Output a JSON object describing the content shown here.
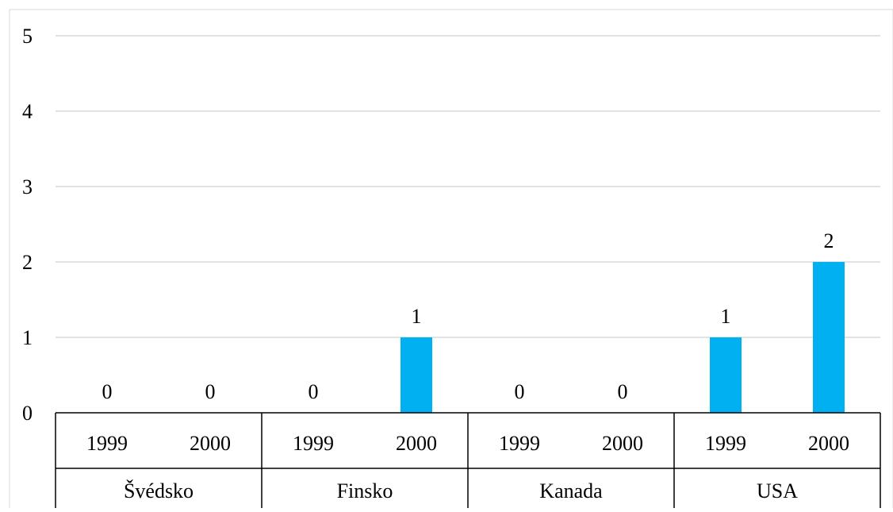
{
  "chart_data": {
    "type": "bar",
    "title": "",
    "xlabel": "",
    "ylabel": "",
    "ylim": [
      0,
      5
    ],
    "yticks": [
      "0",
      "1",
      "2",
      "3",
      "4",
      "5"
    ],
    "grid": true,
    "legend": "none",
    "categories": [
      {
        "group": "Švédsko",
        "year": "1999",
        "value": 0,
        "label": "0"
      },
      {
        "group": "Švédsko",
        "year": "2000",
        "value": 0,
        "label": "0"
      },
      {
        "group": "Finsko",
        "year": "1999",
        "value": 0,
        "label": "0"
      },
      {
        "group": "Finsko",
        "year": "2000",
        "value": 1,
        "label": "1"
      },
      {
        "group": "Kanada",
        "year": "1999",
        "value": 0,
        "label": "0"
      },
      {
        "group": "Kanada",
        "year": "2000",
        "value": 0,
        "label": "0"
      },
      {
        "group": "USA",
        "year": "1999",
        "value": 1,
        "label": "1"
      },
      {
        "group": "USA",
        "year": "2000",
        "value": 2,
        "label": "2"
      }
    ],
    "groups": [
      "Švédsko",
      "Finsko",
      "Kanada",
      "USA"
    ],
    "bar_color": "#00B0F0",
    "grid_color": "#D9D9D9",
    "axis_color": "#000000"
  }
}
